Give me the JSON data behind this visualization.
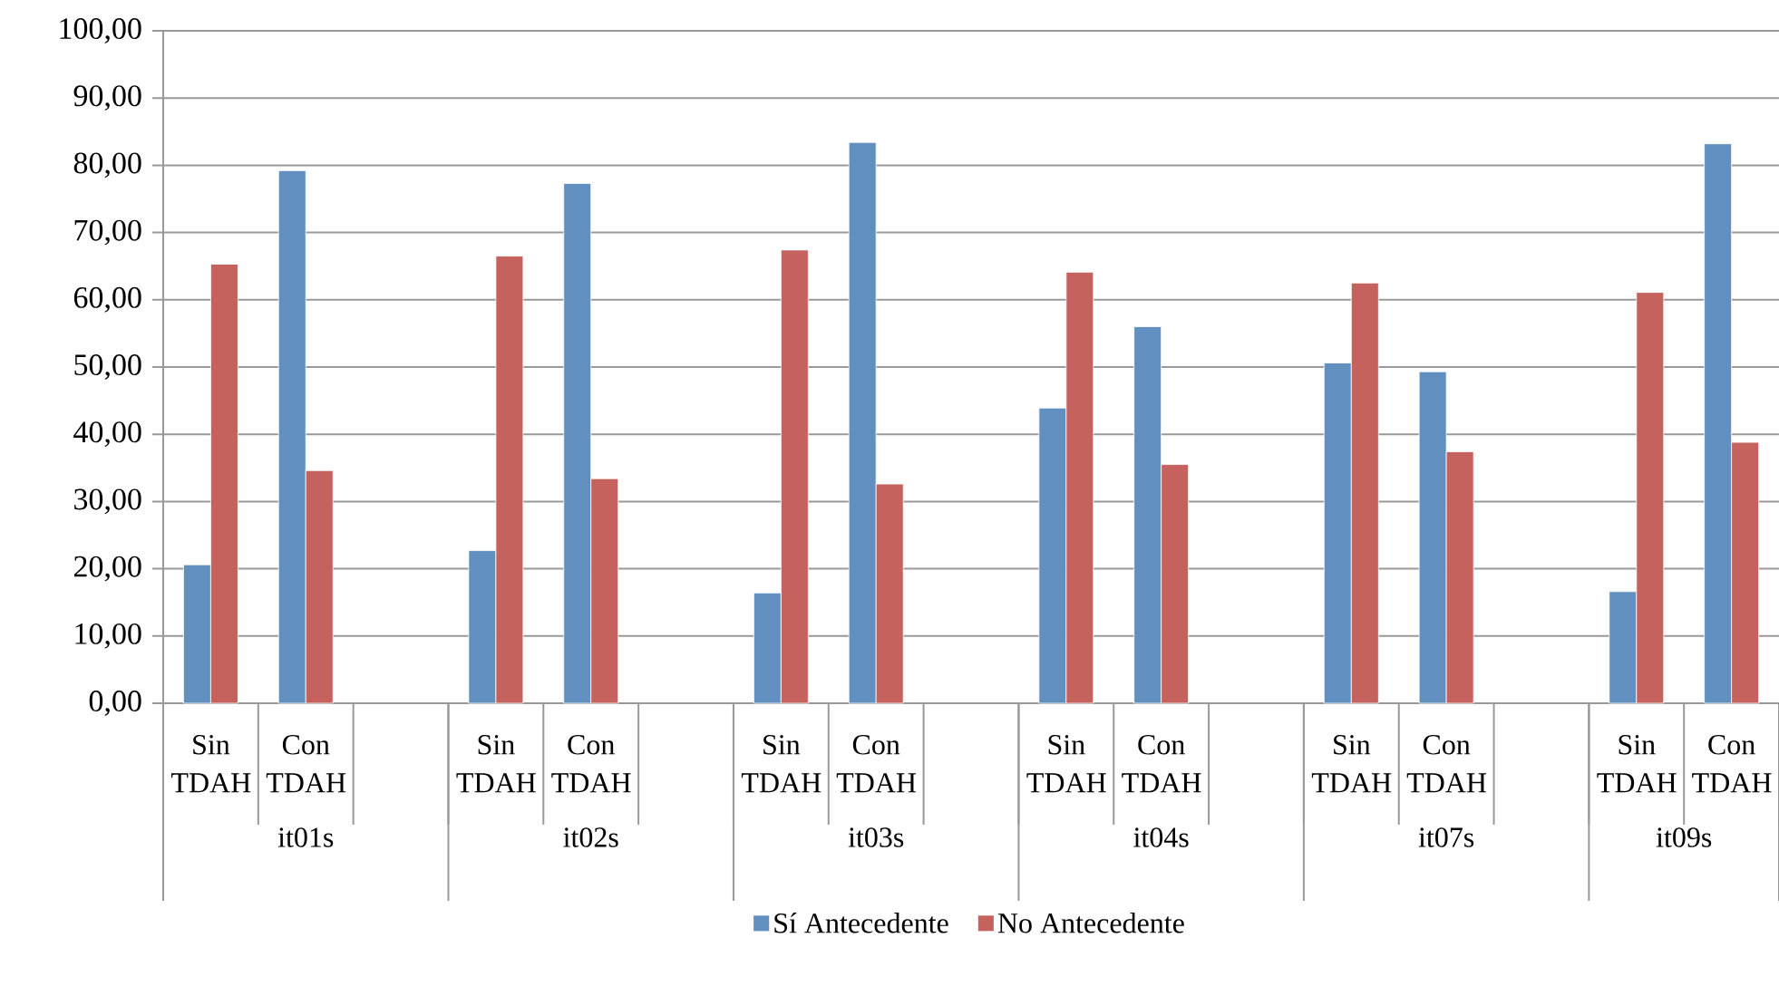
{
  "chart_data": {
    "type": "bar",
    "categories": [
      "Sin TDAH",
      "Con TDAH",
      null,
      "Sin TDAH",
      "Con TDAH",
      null,
      "Sin TDAH",
      "Con TDAH",
      null,
      "Sin TDAH",
      "Con TDAH",
      null,
      "Sin TDAH",
      "Con TDAH",
      null,
      "Sin TDAH",
      "Con TDAH"
    ],
    "series": [
      {
        "name": "Sí Antecedente",
        "color": "#6190c0",
        "values": [
          20.6,
          79.2,
          null,
          22.7,
          77.3,
          null,
          16.4,
          83.4,
          null,
          43.9,
          56.0,
          null,
          50.6,
          49.3,
          null,
          16.6,
          83.2
        ]
      },
      {
        "name": "No Antecedente",
        "color": "#c6625d",
        "values": [
          65.3,
          34.6,
          null,
          66.5,
          33.4,
          null,
          67.4,
          32.6,
          null,
          64.1,
          35.5,
          null,
          62.5,
          37.4,
          null,
          61.1,
          38.8
        ]
      }
    ],
    "annotations": [
      "it01s",
      "it02s",
      "it03s",
      "it04s",
      "it07s",
      "it09s"
    ],
    "ylim": [
      0,
      100
    ],
    "yticks": [
      {
        "value": 0,
        "label": "0,00"
      },
      {
        "value": 10,
        "label": "10,00"
      },
      {
        "value": 20,
        "label": "20,00"
      },
      {
        "value": 30,
        "label": "30,00"
      },
      {
        "value": 40,
        "label": "40,00"
      },
      {
        "value": 50,
        "label": "50,00"
      },
      {
        "value": 60,
        "label": "60,00"
      },
      {
        "value": 70,
        "label": "70,00"
      },
      {
        "value": 80,
        "label": "80,00"
      },
      {
        "value": 90,
        "label": "90,00"
      },
      {
        "value": 100,
        "label": "100,00"
      }
    ],
    "grid": "y",
    "legend": "bottom"
  }
}
